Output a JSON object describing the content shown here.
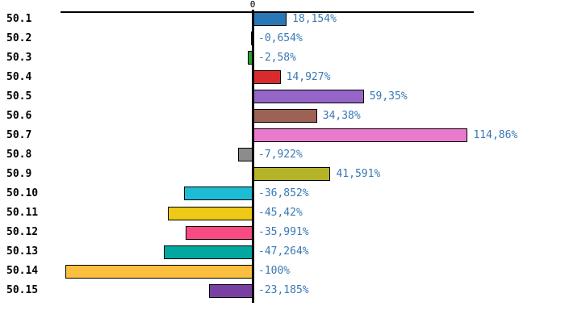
{
  "chart_data": {
    "type": "bar",
    "orientation": "horizontal",
    "title": "",
    "xlabel": "",
    "ylabel": "",
    "grid": false,
    "legend": false,
    "xlim": [
      -102.6,
      118.1
    ],
    "axis": {
      "zero_label": "0"
    },
    "categories": [
      "50.1",
      "50.2",
      "50.3",
      "50.4",
      "50.5",
      "50.6",
      "50.7",
      "50.8",
      "50.9",
      "50.10",
      "50.11",
      "50.12",
      "50.13",
      "50.14",
      "50.15"
    ],
    "values": [
      18.154,
      -0.654,
      -2.58,
      14.927,
      59.35,
      34.38,
      114.86,
      -7.922,
      41.591,
      -36.852,
      -45.42,
      -35.991,
      -47.264,
      -100,
      -23.185
    ],
    "value_labels": [
      "18,154%",
      "-0,654%",
      "-2,58%",
      "14,927%",
      "59,35%",
      "34,38%",
      "114,86%",
      "-7,922%",
      "41,591%",
      "-36,852%",
      "-45,42%",
      "-35,991%",
      "-47,264%",
      "-100%",
      "-23,185%"
    ],
    "bar_colors": [
      "#2878B8",
      "#000000",
      "#2CA02C",
      "#D92B2B",
      "#9565C8",
      "#9C6355",
      "#E97ACC",
      "#8C8C8C",
      "#B5B428",
      "#1CBCD4",
      "#EEC915",
      "#F74B82",
      "#02A8A0",
      "#FBBF3F",
      "#7A3FA3"
    ],
    "value_label_color": "#3878B4",
    "axis_color": "#000000"
  }
}
